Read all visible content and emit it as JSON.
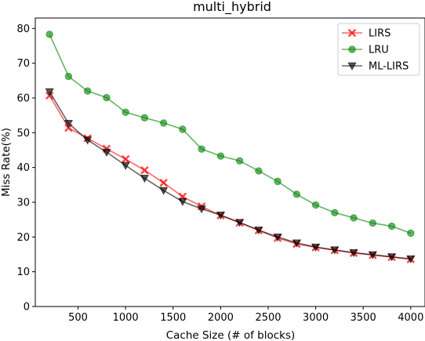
{
  "chart_data": {
    "type": "line",
    "title": "multi_hybrid",
    "xlabel": "Cache Size (# of blocks)",
    "ylabel": "Miss Rate(%)",
    "xlim": [
      50,
      4150
    ],
    "ylim": [
      0,
      83
    ],
    "xticks": [
      500,
      1000,
      1500,
      2000,
      2500,
      3000,
      3500,
      4000
    ],
    "yticks": [
      0,
      10,
      20,
      30,
      40,
      50,
      60,
      70,
      80
    ],
    "grid": false,
    "legend_position": "top-right",
    "x": [
      200,
      400,
      600,
      800,
      1000,
      1200,
      1400,
      1600,
      1800,
      2000,
      2200,
      2400,
      2600,
      2800,
      3000,
      3200,
      3400,
      3600,
      3800,
      4000
    ],
    "series": [
      {
        "name": "LIRS",
        "color": "#ff0000",
        "marker": "x",
        "values": [
          60.7,
          51.4,
          48.4,
          45.4,
          42.4,
          39.2,
          35.6,
          31.6,
          28.8,
          26.2,
          24.1,
          21.9,
          19.7,
          18.0,
          17.0,
          16.2,
          15.4,
          14.8,
          14.2,
          13.6
        ]
      },
      {
        "name": "LRU",
        "color": "#008000",
        "marker": "circle",
        "values": [
          78.3,
          66.2,
          62.0,
          60.1,
          55.9,
          54.3,
          52.8,
          51.0,
          45.3,
          43.3,
          41.9,
          39.0,
          36.0,
          32.3,
          29.2,
          27.0,
          25.5,
          24.0,
          23.1,
          21.1
        ]
      },
      {
        "name": "ML-LIRS",
        "color": "#000000",
        "marker": "triangle-down",
        "values": [
          61.8,
          52.7,
          47.9,
          44.4,
          40.6,
          36.9,
          33.4,
          30.2,
          28.1,
          26.3,
          24.2,
          22.0,
          20.0,
          18.3,
          17.1,
          16.3,
          15.5,
          14.9,
          14.3,
          13.7
        ]
      }
    ]
  }
}
